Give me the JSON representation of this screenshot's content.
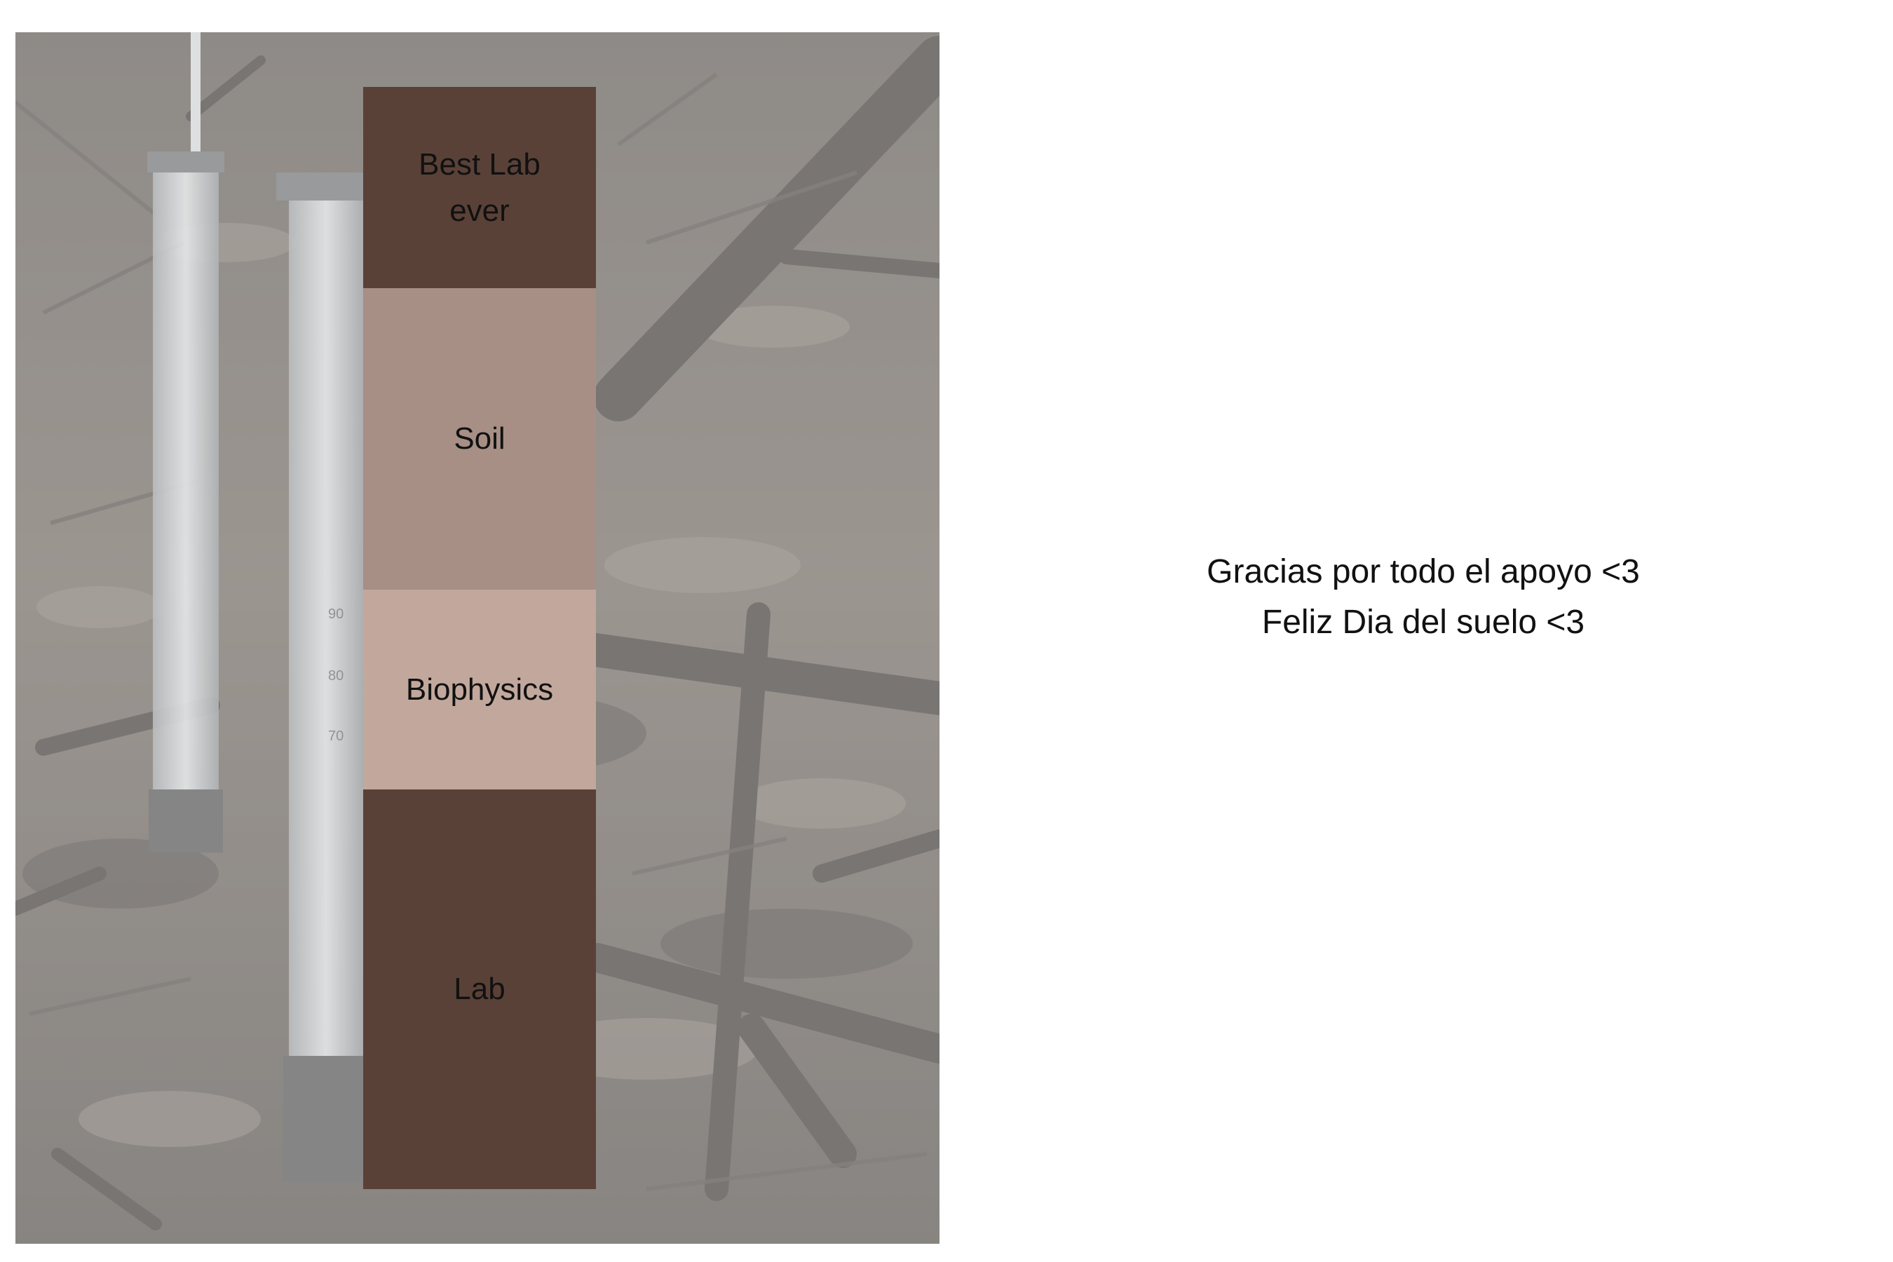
{
  "profile": {
    "layers": [
      {
        "label": "Best Lab\never",
        "color": "#5a4138"
      },
      {
        "label": "Soil",
        "color": "#a78f85"
      },
      {
        "label": "Biophysics",
        "color": "#c2a89c"
      },
      {
        "label": "Lab",
        "color": "#5a4138"
      }
    ]
  },
  "message": {
    "line1": "Gracias por todo el apoyo <3",
    "line2": "Feliz Dia del suelo <3"
  },
  "colors": {
    "background": "#ffffff",
    "text": "#111111"
  }
}
